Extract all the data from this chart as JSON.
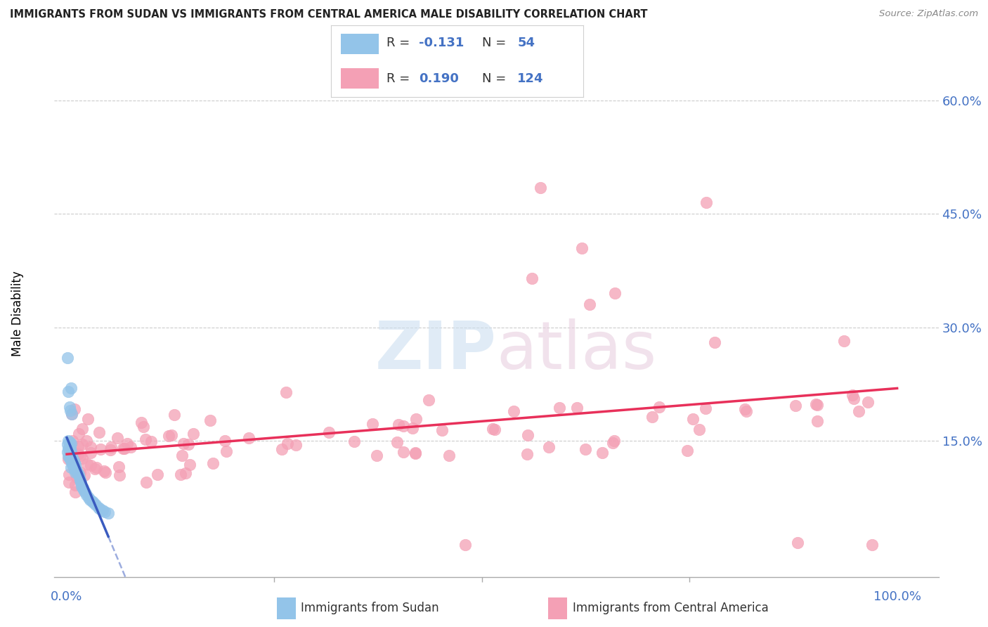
{
  "title": "IMMIGRANTS FROM SUDAN VS IMMIGRANTS FROM CENTRAL AMERICA MALE DISABILITY CORRELATION CHART",
  "source": "Source: ZipAtlas.com",
  "ylabel": "Male Disability",
  "sudan_R": "-0.131",
  "sudan_N": "54",
  "ca_R": "0.190",
  "ca_N": "124",
  "sudan_color": "#93c4e9",
  "ca_color": "#f4a0b5",
  "sudan_line_color": "#3a5bbf",
  "ca_line_color": "#e8305a",
  "text_color": "#4472c4",
  "legend_label_sudan": "Immigrants from Sudan",
  "legend_label_ca": "Immigrants from Central America",
  "xlim": [
    -0.015,
    1.05
  ],
  "ylim": [
    -0.03,
    0.65
  ],
  "ytick_positions": [
    0.15,
    0.3,
    0.45,
    0.6
  ],
  "ytick_labels": [
    "15.0%",
    "30.0%",
    "45.0%",
    "60.0%"
  ]
}
